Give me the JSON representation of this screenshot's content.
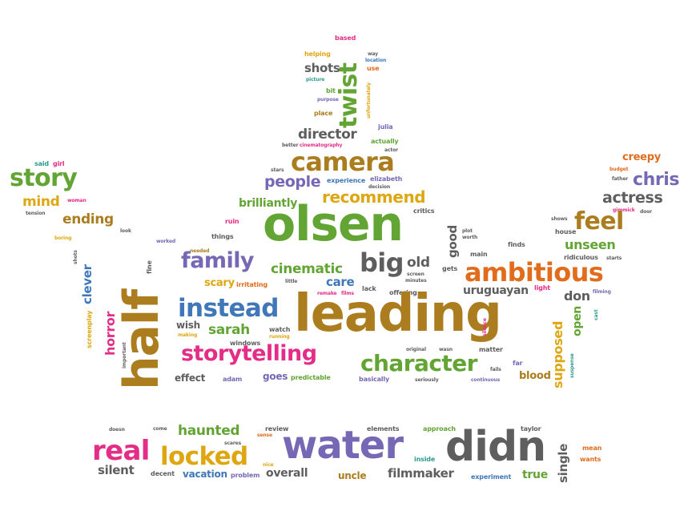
{
  "colors": {
    "green": "#63a535",
    "purple": "#7668b4",
    "pink": "#e42d86",
    "orange": "#e06c1c",
    "gold": "#ab7d1f",
    "yellow": "#dea712",
    "gray": "#5e5e5e",
    "teal": "#2f9a8e",
    "blue": "#3f77b8",
    "red": "#d23a3a"
  },
  "words": [
    "based",
    "way",
    "location",
    "helping",
    "use",
    "shots",
    "twist",
    "picture",
    "bit",
    "purpose",
    "unfortunately",
    "place",
    "julia",
    "director",
    "actually",
    "better",
    "cinematography",
    "actor",
    "stars",
    "camera",
    "decision",
    "elizabeth",
    "creepy",
    "budget",
    "said",
    "girl",
    "story",
    "experience",
    "people",
    "chris",
    "father",
    "woman",
    "mind",
    "tension",
    "recommend",
    "brilliantly",
    "critics",
    "actress",
    "gimmick",
    "door",
    "ending",
    "olsen",
    "plot",
    "worth",
    "shows",
    "feel",
    "boring",
    "look",
    "ruin",
    "good",
    "house",
    "unseen",
    "shots",
    "worked",
    "needed",
    "things",
    "finds",
    "fine",
    "clever",
    "family",
    "big",
    "old",
    "main",
    "ambitious",
    "ridiculous",
    "starts",
    "little",
    "cinematic",
    "screen",
    "minutes",
    "gets",
    "scary",
    "irritating",
    "care",
    "remake",
    "films",
    "lack",
    "offering",
    "uruguayan",
    "light",
    "filming",
    "screenplay",
    "horror",
    "half",
    "instead",
    "leading",
    "don",
    "important",
    "wish",
    "sarah",
    "watch",
    "making",
    "running",
    "windows",
    "supposed",
    "open",
    "cast",
    "storytelling",
    "original",
    "wasn",
    "matter",
    "suspense",
    "silence",
    "effect",
    "adam",
    "goes",
    "predictable",
    "character",
    "basically",
    "seriously",
    "continuous",
    "far",
    "blood",
    "fails",
    "doesn",
    "come",
    "haunted",
    "scares",
    "review",
    "sense",
    "elements",
    "approach",
    "taylor",
    "real",
    "locked",
    "water",
    "didn",
    "single",
    "mean",
    "wants",
    "silent",
    "decent",
    "vacation",
    "problem",
    "overall",
    "nice",
    "inside",
    "uncle",
    "filmmaker",
    "experiment",
    "true"
  ]
}
